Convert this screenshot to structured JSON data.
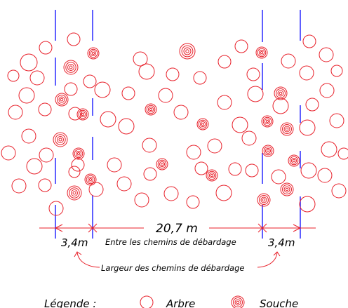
{
  "dimensions": {
    "total": "20,7 m",
    "total_caption": "Entre les chemins de débardage",
    "left_width": "3,4m",
    "right_width": "3,4m"
  },
  "road_caption": "Largeur des chemins de débardage",
  "legend": {
    "title": "Légende :",
    "tree_label": "Arbre",
    "stump_label": "Souche"
  },
  "colors": {
    "road_lines": "#1a1aff",
    "trees": "#e8202a",
    "dimension_lines": "#e8202a",
    "text": "#000000"
  },
  "symbols": {
    "tree": "single-circle",
    "stump": "concentric-circles"
  }
}
